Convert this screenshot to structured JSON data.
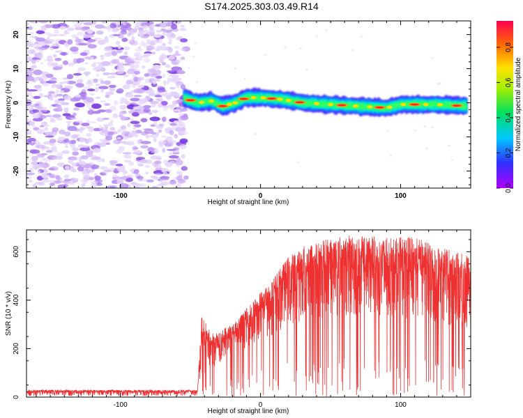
{
  "title": "S174.2025.303.03.49.R14",
  "chart_data": [
    {
      "type": "heatmap",
      "xlabel": "Height of straight line (km)",
      "ylabel": "Frequency (Hz)",
      "xlim": [
        -167,
        150
      ],
      "ylim": [
        -25,
        24
      ],
      "xticks": [
        -100,
        0,
        100
      ],
      "yticks": [
        -20,
        -10,
        0,
        10,
        20
      ],
      "colorbar": {
        "label": "Normalized spectral amplitude",
        "range": [
          0,
          0.95
        ],
        "ticks": [
          0.0,
          0.2,
          0.4,
          0.6,
          0.8
        ],
        "tick_labels": [
          "0.0",
          "0.2",
          "0.4",
          "0.6",
          "0.8"
        ]
      },
      "noise_region_x": [
        -167,
        -53
      ],
      "signal_start_x": -55,
      "track": [
        {
          "x": -55,
          "f": 1.5
        },
        {
          "x": -45,
          "f": 0
        },
        {
          "x": -35,
          "f": 0.5
        },
        {
          "x": -27,
          "f": -1
        },
        {
          "x": -18,
          "f": 0
        },
        {
          "x": -10,
          "f": 1.5
        },
        {
          "x": 0,
          "f": 1.5
        },
        {
          "x": 15,
          "f": 1
        },
        {
          "x": 30,
          "f": 0
        },
        {
          "x": 50,
          "f": -0.5
        },
        {
          "x": 70,
          "f": -1
        },
        {
          "x": 90,
          "f": -1.5
        },
        {
          "x": 100,
          "f": -0.5
        },
        {
          "x": 125,
          "f": -0.5
        },
        {
          "x": 148,
          "f": -1
        }
      ]
    },
    {
      "type": "line",
      "xlabel": "Height of straight line (km)",
      "ylabel": "SNR (10 * v/v)",
      "xlim": [
        -167,
        150
      ],
      "ylim": [
        0,
        690
      ],
      "xticks": [
        -100,
        0,
        100
      ],
      "yticks": [
        0,
        200,
        400,
        600
      ],
      "color": "#ee3030",
      "envelope": [
        {
          "x": -167,
          "lo": 5,
          "hi": 30
        },
        {
          "x": -45,
          "lo": 5,
          "hi": 30
        },
        {
          "x": -42,
          "lo": 60,
          "hi": 340
        },
        {
          "x": -35,
          "lo": 120,
          "hi": 260
        },
        {
          "x": -20,
          "lo": 180,
          "hi": 300
        },
        {
          "x": -5,
          "lo": 220,
          "hi": 400
        },
        {
          "x": 10,
          "lo": 260,
          "hi": 500
        },
        {
          "x": 20,
          "lo": 300,
          "hi": 580
        },
        {
          "x": 35,
          "lo": 320,
          "hi": 640
        },
        {
          "x": 60,
          "lo": 330,
          "hi": 670
        },
        {
          "x": 90,
          "lo": 330,
          "hi": 660
        },
        {
          "x": 110,
          "lo": 320,
          "hi": 660
        },
        {
          "x": 130,
          "lo": 300,
          "hi": 620
        },
        {
          "x": 150,
          "lo": 280,
          "hi": 580
        }
      ]
    }
  ]
}
